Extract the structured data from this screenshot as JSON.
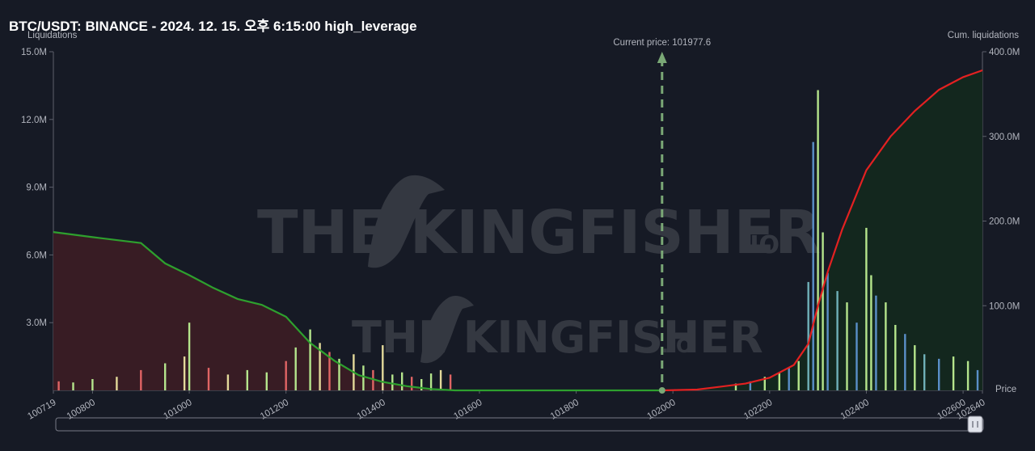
{
  "title": "BTC/USDT: BINANCE - 2024. 12. 15. 오후 6:15:00 high_leverage",
  "left_axis_label": "Liquidations",
  "right_axis_label": "Cum. liquidations",
  "price_label": "Price",
  "current_price_text": "Current price: 101977.6",
  "watermark": {
    "large_text": "THE KINGFISHER",
    "large_suffix": ".IO",
    "small_text": "THE KINGFISHER",
    "small_suffix": ".IO"
  },
  "colors": {
    "background": "#161a25",
    "long_cum_line": "#2ea02e",
    "short_cum_line": "#e32121",
    "long_fill": "#3a1c24",
    "short_fill": "#13281d",
    "current_price": "#7aa876",
    "bar_green": "#b5e58c",
    "bar_yellow": "#e3d99a",
    "bar_blue": "#5a8fc8",
    "bar_red": "#e06464",
    "bar_teal": "#6fb0b8"
  },
  "chart_data": {
    "type": "bar",
    "title": "BTC/USDT: BINANCE - 2024. 12. 15. 오후 6:15:00 high_leverage",
    "xlabel": "Price",
    "ylabel": "Liquidations",
    "y2label": "Cum. liquidations",
    "xlim": [
      100719,
      102640
    ],
    "ylim": [
      0,
      15000000
    ],
    "y2lim": [
      0,
      400000000
    ],
    "x_ticks": [
      "100719",
      "100800",
      "101000",
      "101200",
      "101400",
      "101600",
      "101800",
      "102000",
      "102200",
      "102400",
      "102600",
      "102640"
    ],
    "y_ticks": [
      "3.0M",
      "6.0M",
      "9.0M",
      "12.0M",
      "15.0M"
    ],
    "y2_ticks": [
      "100.0M",
      "200.0M",
      "300.0M",
      "400.0M"
    ],
    "current_price": 101977.6,
    "long_cumulative": {
      "name": "Long cum. liquidations",
      "x": [
        100719,
        100800,
        100900,
        100950,
        101000,
        101050,
        101100,
        101150,
        101200,
        101250,
        101300,
        101350,
        101400,
        101450,
        101500,
        101550,
        101600,
        101800,
        101977.6
      ],
      "y": [
        187000000,
        181000000,
        174000000,
        150000000,
        136000000,
        121000000,
        108000000,
        101000000,
        87000000,
        56000000,
        35000000,
        18000000,
        10000000,
        5000000,
        1500000,
        0,
        0,
        0,
        0
      ]
    },
    "short_cumulative": {
      "name": "Short cum. liquidations",
      "x": [
        101977.6,
        102050,
        102150,
        102200,
        102250,
        102280,
        102300,
        102320,
        102350,
        102400,
        102450,
        102500,
        102550,
        102600,
        102640
      ],
      "y": [
        0,
        1000000,
        8000000,
        15000000,
        30000000,
        55000000,
        100000000,
        140000000,
        190000000,
        260000000,
        300000000,
        330000000,
        355000000,
        370000000,
        378000000
      ]
    },
    "bars": {
      "x": [
        100730,
        100760,
        100800,
        100850,
        100900,
        100950,
        100990,
        101000,
        101040,
        101080,
        101120,
        101160,
        101200,
        101220,
        101250,
        101270,
        101290,
        101310,
        101340,
        101360,
        101380,
        101400,
        101420,
        101440,
        101460,
        101480,
        101500,
        101520,
        101540,
        102130,
        102160,
        102190,
        102220,
        102240,
        102260,
        102280,
        102290,
        102300,
        102310,
        102320,
        102340,
        102360,
        102380,
        102400,
        102410,
        102420,
        102440,
        102460,
        102480,
        102500,
        102520,
        102550,
        102580,
        102610,
        102630
      ],
      "values": [
        400000,
        350000,
        500000,
        600000,
        900000,
        1200000,
        1500000,
        3000000,
        1000000,
        700000,
        900000,
        800000,
        1300000,
        1900000,
        2700000,
        2100000,
        1700000,
        1400000,
        1600000,
        1100000,
        900000,
        2000000,
        700000,
        800000,
        600000,
        500000,
        750000,
        900000,
        700000,
        300000,
        400000,
        600000,
        800000,
        1000000,
        1300000,
        4800000,
        11000000,
        13300000,
        7000000,
        5200000,
        4400000,
        3900000,
        3000000,
        7200000,
        5100000,
        4200000,
        3900000,
        2900000,
        2500000,
        2000000,
        1600000,
        1400000,
        1500000,
        1300000,
        900000
      ]
    }
  }
}
